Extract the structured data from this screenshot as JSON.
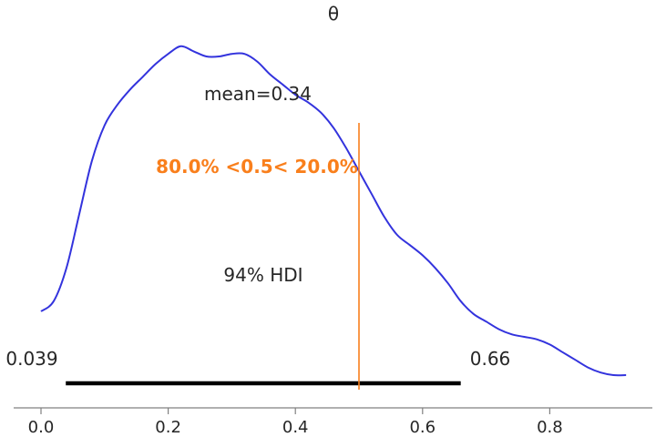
{
  "chart_data": {
    "type": "line",
    "title": "θ",
    "xlabel": "",
    "ylabel": "",
    "xlim": [
      -0.04,
      0.96
    ],
    "x_ticks": [
      0.0,
      0.2,
      0.4,
      0.6,
      0.8
    ],
    "x_tick_labels": [
      "0.0",
      "0.2",
      "0.4",
      "0.6",
      "0.8"
    ],
    "grid": false,
    "series": [
      {
        "x": [
          0.0,
          0.02,
          0.04,
          0.06,
          0.08,
          0.1,
          0.12,
          0.14,
          0.16,
          0.18,
          0.2,
          0.22,
          0.24,
          0.26,
          0.28,
          0.3,
          0.32,
          0.34,
          0.36,
          0.38,
          0.4,
          0.42,
          0.44,
          0.46,
          0.48,
          0.5,
          0.52,
          0.54,
          0.56,
          0.58,
          0.6,
          0.62,
          0.64,
          0.66,
          0.68,
          0.7,
          0.72,
          0.74,
          0.76,
          0.78,
          0.8,
          0.82,
          0.84,
          0.86,
          0.88,
          0.9,
          0.92
        ],
        "y": [
          0.0,
          0.04,
          0.17,
          0.38,
          0.59,
          0.73,
          0.81,
          0.87,
          0.92,
          0.97,
          1.01,
          1.04,
          1.02,
          1.0,
          1.0,
          1.01,
          1.01,
          0.98,
          0.93,
          0.89,
          0.85,
          0.82,
          0.78,
          0.72,
          0.64,
          0.55,
          0.46,
          0.37,
          0.3,
          0.26,
          0.22,
          0.17,
          0.11,
          0.04,
          -0.01,
          -0.04,
          -0.07,
          -0.09,
          -0.1,
          -0.11,
          -0.13,
          -0.16,
          -0.19,
          -0.22,
          -0.24,
          -0.25,
          -0.25
        ],
        "color": "#3333dd"
      }
    ],
    "annotations": {
      "mean_label": "mean=0.34",
      "ref_label": "80.0% <0.5< 20.0%",
      "ref_value": 0.5,
      "ref_color": "#f97f1c",
      "hdi_label": "94% HDI",
      "hdi_low": 0.039,
      "hdi_high": 0.66,
      "hdi_low_label": "0.039",
      "hdi_high_label": "0.66"
    }
  }
}
